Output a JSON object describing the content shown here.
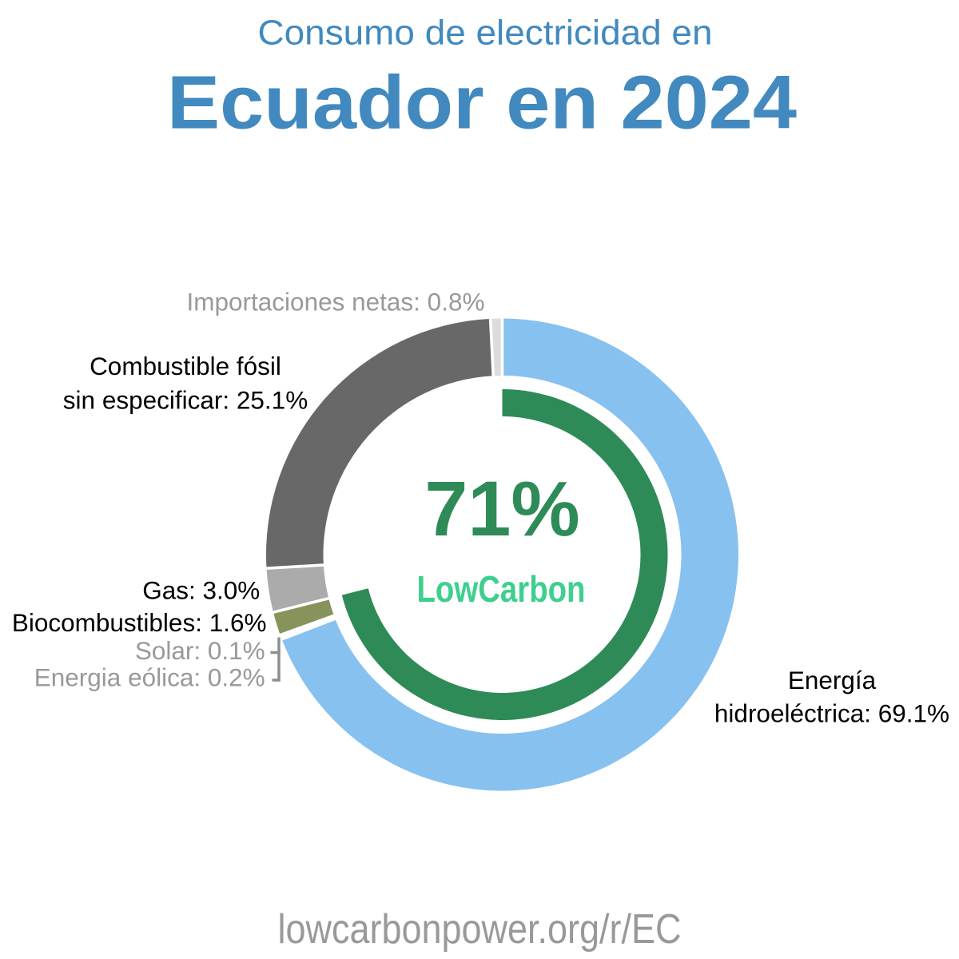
{
  "title": {
    "line1": "Consumo de electricidad en",
    "line2": "Ecuador en 2024",
    "color": "#4189be"
  },
  "center": {
    "percent": "71%",
    "brand": "LowCarbon",
    "percent_color": "#2e8b57",
    "brand_color": "#3ecf8e"
  },
  "footer": {
    "url": "lowcarbonpower.org/r/EC",
    "color": "#999999"
  },
  "labels": {
    "importaciones": "Importaciones netas: 0.8%",
    "fosil_line1": "Combustible fósil",
    "fosil_line2": "sin especificar: 25.1%",
    "gas": "Gas: 3.0%",
    "biocombustibles": "Biocombustibles: 1.6%",
    "solar": "Solar: 0.1%",
    "eolica": "Energia eólica: 0.2%",
    "hidro_line1": "Energía",
    "hidro_line2": "hidroeléctrica: 69.1%",
    "gray_label_color": "#999999",
    "black_label_color": "#000000",
    "leader_line_color": "#8e8e8e"
  },
  "chart_data": {
    "type": "pie",
    "donut": true,
    "start_angle_deg": 0,
    "direction": "clockwise",
    "title": "Consumo de electricidad en Ecuador en 2024",
    "center_value": "71%",
    "center_sublabel": "LowCarbon",
    "low_carbon_share_pct": 71,
    "inner_arc_color": "#2e8b57",
    "separator_color": "#ffffff",
    "segments": [
      {
        "name": "Energía hidroeléctrica",
        "value_pct": 69.1,
        "color": "#87c1f0",
        "low_carbon": true
      },
      {
        "name": "Energia eólica",
        "value_pct": 0.2,
        "color": "#b8d89a",
        "low_carbon": true
      },
      {
        "name": "Solar",
        "value_pct": 0.1,
        "color": "#f4d44d",
        "low_carbon": true
      },
      {
        "name": "Biocombustibles",
        "value_pct": 1.6,
        "color": "#86945c",
        "low_carbon": true
      },
      {
        "name": "Gas",
        "value_pct": 3.0,
        "color": "#ababab",
        "low_carbon": false
      },
      {
        "name": "Combustible fósil sin especificar",
        "value_pct": 25.1,
        "color": "#686868",
        "low_carbon": false
      },
      {
        "name": "Importaciones netas",
        "value_pct": 0.8,
        "color": "#dcdcdc",
        "low_carbon": false
      }
    ]
  }
}
